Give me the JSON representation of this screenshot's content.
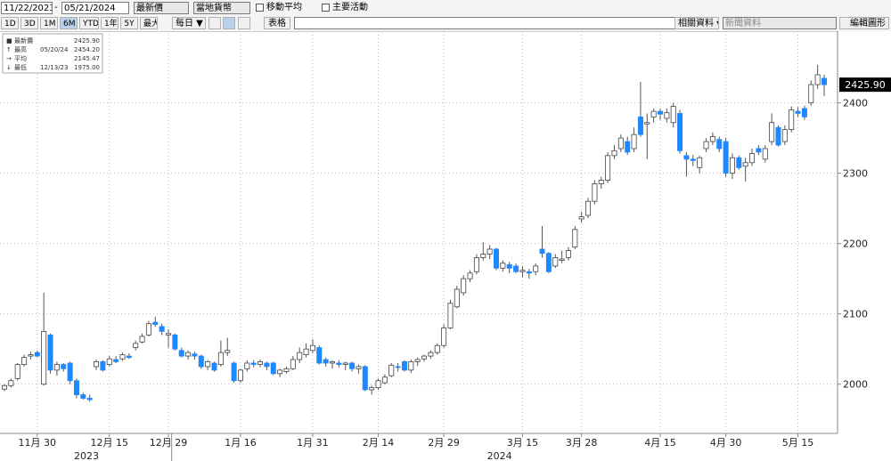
{
  "ui": {
    "start_date": "11/22/2023",
    "end_date": "05/21/2024",
    "field": "最新價",
    "currency": "當地貨幣",
    "checkboxes": [
      "移動平均",
      "主要活動"
    ],
    "periods": [
      "1D",
      "3D",
      "1M",
      "6M",
      "YTD",
      "1年",
      "5Y",
      "最大"
    ],
    "selected_period": 3,
    "frequency": "每日 ▼",
    "table": "表格",
    "related": "相關資料 ▾",
    "news": "新聞資料",
    "edit": "編輯圖形"
  },
  "chart_data": {
    "type": "candlestick",
    "summary": [
      {
        "name": "最新價",
        "value": "2425.90"
      },
      {
        "name": "最高",
        "date": "05/20/24",
        "value": "2454.20"
      },
      {
        "name": "平均",
        "value": "2145.47"
      },
      {
        "name": "最低",
        "date": "12/13/23",
        "value": "1975.00"
      }
    ],
    "last_price": {
      "value": 2425.9,
      "label": "2425.90"
    },
    "up_color": "#ffffff",
    "down_color": "#1e88ff",
    "ylim": [
      1930,
      2502
    ],
    "yticks": [
      2000,
      2100,
      2200,
      2300,
      2400
    ],
    "grid": true,
    "categories": [
      null,
      null,
      null,
      null,
      null,
      "11月 30",
      null,
      null,
      null,
      null,
      null,
      null,
      null,
      null,
      null,
      null,
      "12月 15",
      null,
      null,
      null,
      null,
      null,
      null,
      null,
      null,
      "12月 29",
      null,
      null,
      null,
      null,
      null,
      null,
      null,
      null,
      null,
      null,
      "1月 16",
      null,
      null,
      null,
      null,
      null,
      null,
      null,
      null,
      null,
      null,
      "1月 31",
      null,
      null,
      null,
      null,
      null,
      null,
      null,
      null,
      null,
      "2月 14",
      null,
      null,
      null,
      null,
      null,
      null,
      null,
      null,
      null,
      "2月 29",
      null,
      null,
      null,
      null,
      null,
      null,
      null,
      null,
      null,
      null,
      null,
      "3月 15",
      null,
      null,
      null,
      null,
      null,
      null,
      null,
      null,
      "3月 28",
      null,
      null,
      null,
      null,
      null,
      null,
      null,
      null,
      null,
      null,
      null,
      "4月 15",
      null,
      null,
      null,
      null,
      null,
      null,
      null,
      null,
      null,
      "4月 30",
      null,
      null,
      null,
      null,
      null,
      null,
      null,
      null,
      null,
      null,
      "5月 15",
      null,
      null,
      null,
      null
    ],
    "x_groups": [
      {
        "label": "2023",
        "start": 0,
        "end": 25
      },
      {
        "label": "2024",
        "start": 26,
        "end": 125
      }
    ],
    "ohlc": [
      [
        1993,
        2000,
        1990,
        1998
      ],
      [
        1998,
        2008,
        1995,
        2005
      ],
      [
        2008,
        2030,
        2005,
        2028
      ],
      [
        2028,
        2042,
        2025,
        2038
      ],
      [
        2040,
        2046,
        2035,
        2042
      ],
      [
        2045,
        2048,
        2038,
        2040
      ],
      [
        2000,
        2130,
        1998,
        2075
      ],
      [
        2070,
        2072,
        2015,
        2020
      ],
      [
        2020,
        2032,
        2012,
        2028
      ],
      [
        2028,
        2030,
        2018,
        2022
      ],
      [
        2030,
        2032,
        2000,
        2005
      ],
      [
        2005,
        2008,
        1980,
        1985
      ],
      [
        1985,
        1988,
        1978,
        1980
      ],
      [
        1980,
        1985,
        1975,
        1978
      ],
      [
        2025,
        2035,
        2020,
        2032
      ],
      [
        2032,
        2034,
        2018,
        2020
      ],
      [
        2028,
        2040,
        2025,
        2036
      ],
      [
        2035,
        2040,
        2030,
        2032
      ],
      [
        2036,
        2045,
        2033,
        2042
      ],
      [
        2040,
        2044,
        2036,
        2038
      ],
      [
        2052,
        2062,
        2048,
        2058
      ],
      [
        2060,
        2072,
        2058,
        2068
      ],
      [
        2070,
        2090,
        2068,
        2086
      ],
      [
        2088,
        2096,
        2082,
        2085
      ],
      [
        2082,
        2086,
        2070,
        2075
      ],
      [
        2070,
        2078,
        2052,
        2072
      ],
      [
        2070,
        2072,
        2048,
        2050
      ],
      [
        2048,
        2052,
        2038,
        2040
      ],
      [
        2040,
        2048,
        2035,
        2045
      ],
      [
        2043,
        2046,
        2035,
        2040
      ],
      [
        2040,
        2042,
        2022,
        2025
      ],
      [
        2025,
        2034,
        2020,
        2032
      ],
      [
        2030,
        2032,
        2018,
        2020
      ],
      [
        2028,
        2062,
        2025,
        2045
      ],
      [
        2045,
        2066,
        2040,
        2048
      ],
      [
        2030,
        2032,
        2002,
        2005
      ],
      [
        2005,
        2022,
        2002,
        2020
      ],
      [
        2022,
        2034,
        2018,
        2030
      ],
      [
        2030,
        2034,
        2024,
        2028
      ],
      [
        2028,
        2035,
        2024,
        2032
      ],
      [
        2030,
        2032,
        2020,
        2025
      ],
      [
        2030,
        2032,
        2013,
        2015
      ],
      [
        2015,
        2022,
        2010,
        2020
      ],
      [
        2018,
        2025,
        2015,
        2022
      ],
      [
        2022,
        2040,
        2020,
        2035
      ],
      [
        2035,
        2052,
        2030,
        2045
      ],
      [
        2042,
        2058,
        2038,
        2050
      ],
      [
        2048,
        2064,
        2044,
        2055
      ],
      [
        2052,
        2055,
        2028,
        2030
      ],
      [
        2035,
        2038,
        2025,
        2030
      ],
      [
        2030,
        2034,
        2022,
        2032
      ],
      [
        2030,
        2034,
        2024,
        2028
      ],
      [
        2028,
        2032,
        2020,
        2030
      ],
      [
        2030,
        2032,
        2018,
        2022
      ],
      [
        2022,
        2028,
        2015,
        2025
      ],
      [
        2025,
        2027,
        1990,
        1992
      ],
      [
        1992,
        1998,
        1985,
        1995
      ],
      [
        1995,
        2008,
        1992,
        2005
      ],
      [
        2002,
        2014,
        2000,
        2010
      ],
      [
        2012,
        2030,
        2010,
        2027
      ],
      [
        2025,
        2030,
        2018,
        2024
      ],
      [
        2032,
        2034,
        2018,
        2020
      ],
      [
        2020,
        2035,
        2016,
        2032
      ],
      [
        2032,
        2038,
        2026,
        2035
      ],
      [
        2036,
        2042,
        2032,
        2040
      ],
      [
        2040,
        2048,
        2036,
        2045
      ],
      [
        2045,
        2058,
        2042,
        2055
      ],
      [
        2055,
        2085,
        2052,
        2080
      ],
      [
        2080,
        2120,
        2078,
        2115
      ],
      [
        2110,
        2140,
        2108,
        2135
      ],
      [
        2130,
        2155,
        2126,
        2150
      ],
      [
        2150,
        2162,
        2145,
        2158
      ],
      [
        2160,
        2185,
        2156,
        2180
      ],
      [
        2180,
        2202,
        2176,
        2185
      ],
      [
        2185,
        2198,
        2178,
        2192
      ],
      [
        2192,
        2194,
        2162,
        2165
      ],
      [
        2165,
        2176,
        2160,
        2172
      ],
      [
        2170,
        2174,
        2158,
        2165
      ],
      [
        2168,
        2172,
        2158,
        2160
      ],
      [
        2160,
        2168,
        2152,
        2162
      ],
      [
        2160,
        2164,
        2150,
        2158
      ],
      [
        2160,
        2172,
        2155,
        2168
      ],
      [
        2192,
        2225,
        2180,
        2186
      ],
      [
        2186,
        2188,
        2158,
        2160
      ],
      [
        2168,
        2185,
        2165,
        2180
      ],
      [
        2176,
        2190,
        2172,
        2178
      ],
      [
        2180,
        2195,
        2176,
        2190
      ],
      [
        2195,
        2225,
        2192,
        2220
      ],
      [
        2235,
        2245,
        2230,
        2238
      ],
      [
        2240,
        2265,
        2236,
        2260
      ],
      [
        2260,
        2290,
        2256,
        2285
      ],
      [
        2285,
        2295,
        2278,
        2290
      ],
      [
        2290,
        2330,
        2286,
        2325
      ],
      [
        2325,
        2340,
        2320,
        2332
      ],
      [
        2335,
        2355,
        2330,
        2350
      ],
      [
        2345,
        2352,
        2326,
        2330
      ],
      [
        2335,
        2365,
        2330,
        2355
      ],
      [
        2380,
        2430,
        2352,
        2355
      ],
      [
        2370,
        2385,
        2320,
        2372
      ],
      [
        2380,
        2392,
        2372,
        2388
      ],
      [
        2388,
        2392,
        2376,
        2384
      ],
      [
        2378,
        2392,
        2372,
        2386
      ],
      [
        2372,
        2400,
        2365,
        2395
      ],
      [
        2385,
        2390,
        2328,
        2332
      ],
      [
        2325,
        2330,
        2295,
        2320
      ],
      [
        2320,
        2326,
        2310,
        2318
      ],
      [
        2308,
        2325,
        2300,
        2322
      ],
      [
        2335,
        2350,
        2330,
        2345
      ],
      [
        2345,
        2358,
        2340,
        2352
      ],
      [
        2348,
        2352,
        2330,
        2335
      ],
      [
        2345,
        2350,
        2295,
        2300
      ],
      [
        2300,
        2328,
        2292,
        2322
      ],
      [
        2322,
        2325,
        2305,
        2308
      ],
      [
        2310,
        2322,
        2288,
        2315
      ],
      [
        2315,
        2335,
        2310,
        2328
      ],
      [
        2335,
        2340,
        2326,
        2330
      ],
      [
        2320,
        2340,
        2315,
        2335
      ],
      [
        2345,
        2385,
        2340,
        2372
      ],
      [
        2365,
        2368,
        2338,
        2340
      ],
      [
        2345,
        2368,
        2340,
        2362
      ],
      [
        2362,
        2395,
        2358,
        2390
      ],
      [
        2388,
        2394,
        2380,
        2385
      ],
      [
        2392,
        2396,
        2376,
        2380
      ],
      [
        2400,
        2432,
        2396,
        2426
      ],
      [
        2426,
        2454.2,
        2420,
        2440
      ],
      [
        2435,
        2440,
        2410,
        2425.9
      ]
    ]
  }
}
